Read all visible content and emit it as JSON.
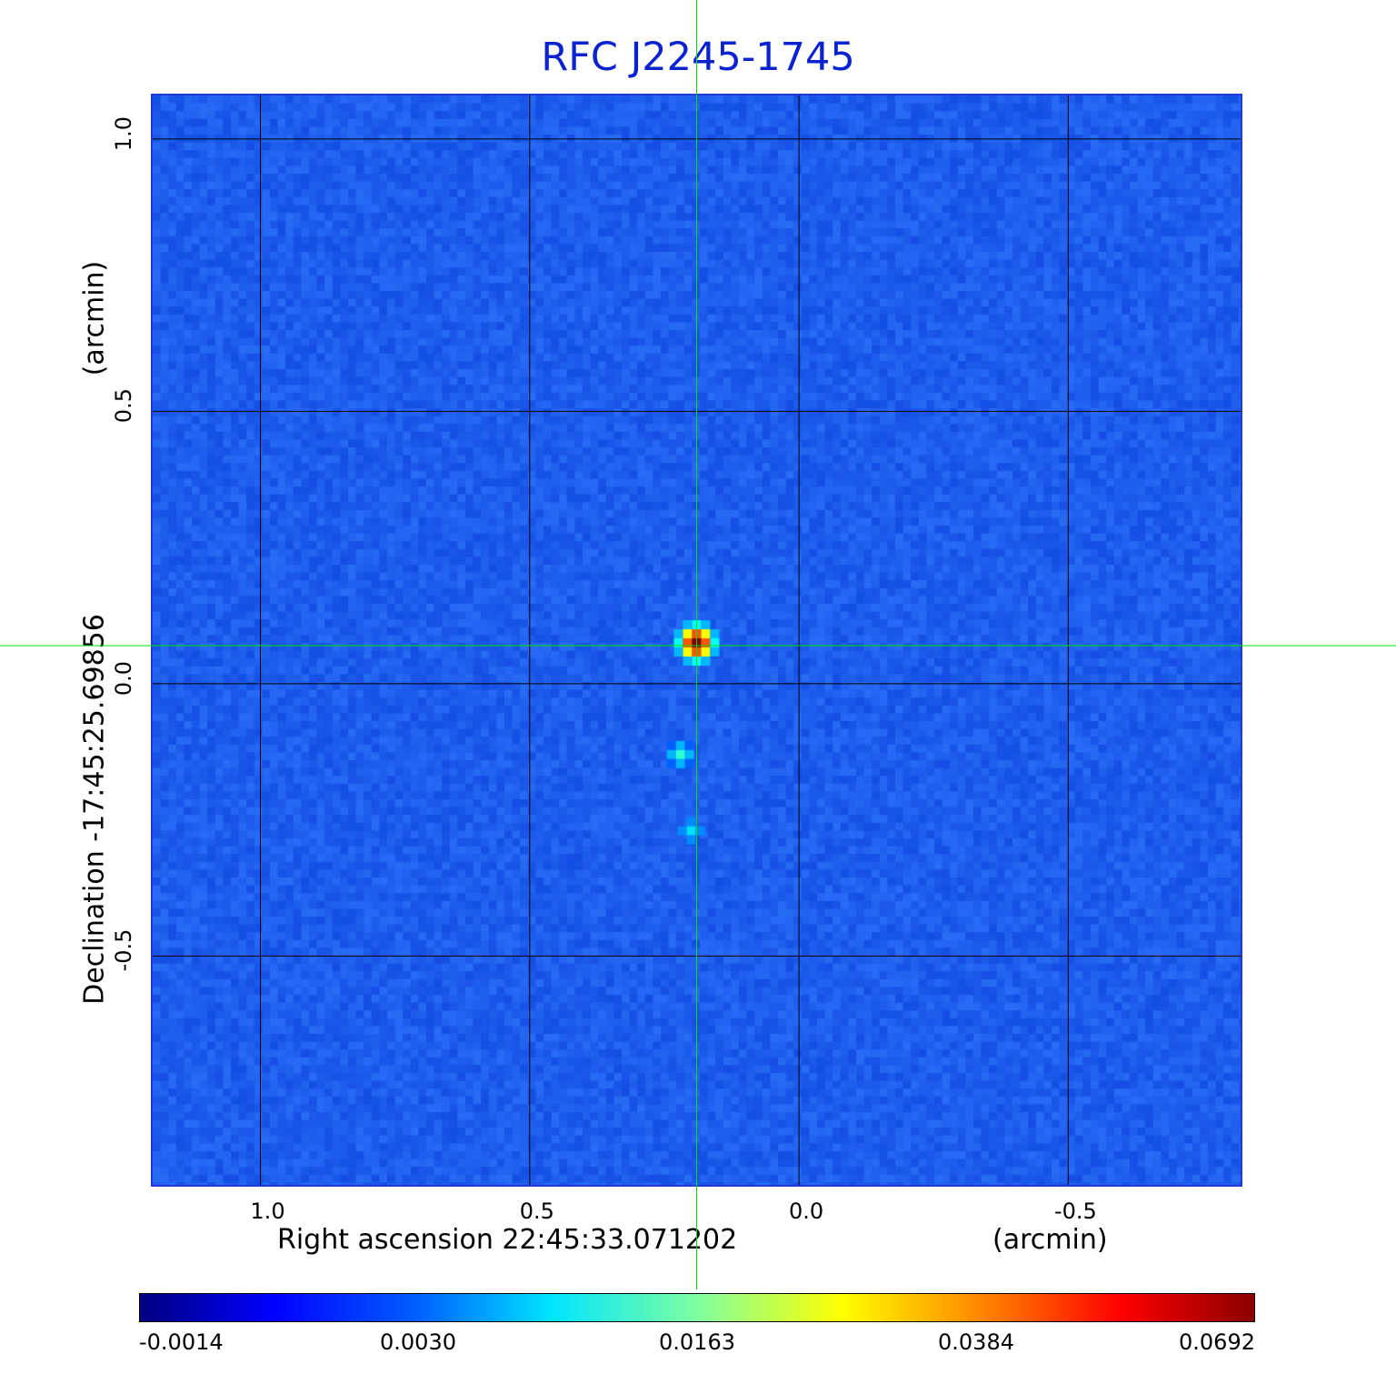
{
  "chart_data": {
    "type": "heatmap",
    "title": "RFC J2245-1745",
    "xlabel": "Right ascension  22:45:33.071202",
    "xunit": "(arcmin)",
    "ylabel": "Declination  -17:45:25.69856",
    "yunit": "(arcmin)",
    "x_ticks": [
      "1.0",
      "0.5",
      "0.0",
      "-0.5"
    ],
    "x_tick_values": [
      1.0,
      0.5,
      0.0,
      -0.5
    ],
    "y_ticks": [
      "1.0",
      "0.5",
      "0.0",
      "-0.5"
    ],
    "y_tick_values": [
      1.0,
      0.5,
      0.0,
      -0.5
    ],
    "xlim": [
      1.2,
      -0.82
    ],
    "ylim": [
      -0.92,
      1.08
    ],
    "grid": true,
    "colormap": "jet",
    "colorbar_ticks": [
      "-0.0014",
      "0.0030",
      "0.0163",
      "0.0384",
      "0.0692"
    ],
    "colorbar_tick_values": [
      -0.0014,
      0.003,
      0.0163,
      0.0384,
      0.0692
    ],
    "crosshair": {
      "x": 0.19,
      "y": 0.07,
      "color": "#00e000"
    },
    "sources": [
      {
        "x": 0.19,
        "y": 0.075,
        "peak": 0.0692
      },
      {
        "x": 0.22,
        "y": -0.13,
        "peak": 0.012
      },
      {
        "x": 0.2,
        "y": -0.27,
        "peak": 0.008
      }
    ],
    "background_color": "#1f55ef"
  }
}
